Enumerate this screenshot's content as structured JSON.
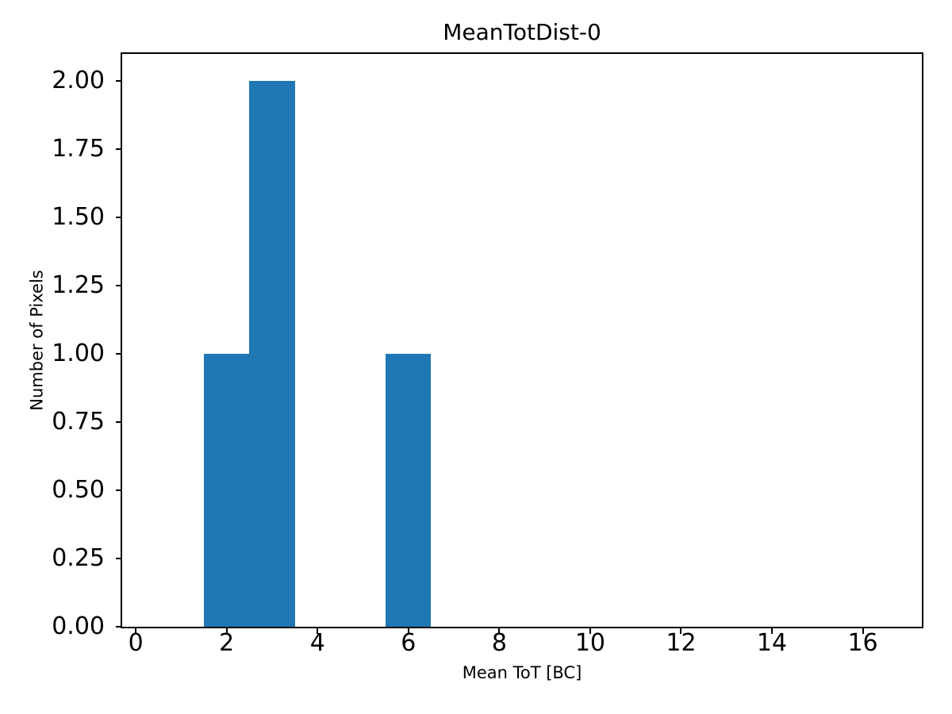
{
  "chart_data": {
    "type": "bar",
    "subtype": "histogram",
    "title": "MeanTotDist-0",
    "xlabel": "Mean ToT [BC]",
    "ylabel": "Number of Pixels",
    "bars": [
      {
        "bin_start": 1.5,
        "bin_end": 2.5,
        "bin_center": 2,
        "count": 1
      },
      {
        "bin_start": 2.5,
        "bin_end": 3.5,
        "bin_center": 3,
        "count": 2
      },
      {
        "bin_start": 5.5,
        "bin_end": 6.5,
        "bin_center": 6,
        "count": 1
      }
    ],
    "xlim": [
      -0.3,
      17.3
    ],
    "ylim": [
      0,
      2.1
    ],
    "xticks": {
      "values": [
        0,
        2,
        4,
        6,
        8,
        10,
        12,
        14,
        16
      ],
      "labels": [
        "0",
        "2",
        "4",
        "6",
        "8",
        "10",
        "12",
        "14",
        "16"
      ]
    },
    "yticks": {
      "values": [
        0,
        0.25,
        0.5,
        0.75,
        1.0,
        1.25,
        1.5,
        1.75,
        2.0
      ],
      "labels": [
        "0.00",
        "0.25",
        "0.50",
        "0.75",
        "1.00",
        "1.25",
        "1.50",
        "1.75",
        "2.00"
      ]
    },
    "bar_color": "#1f77b4",
    "axis_color": "#000000",
    "background_color": "#ffffff",
    "grid": false,
    "legend_position": "none"
  }
}
